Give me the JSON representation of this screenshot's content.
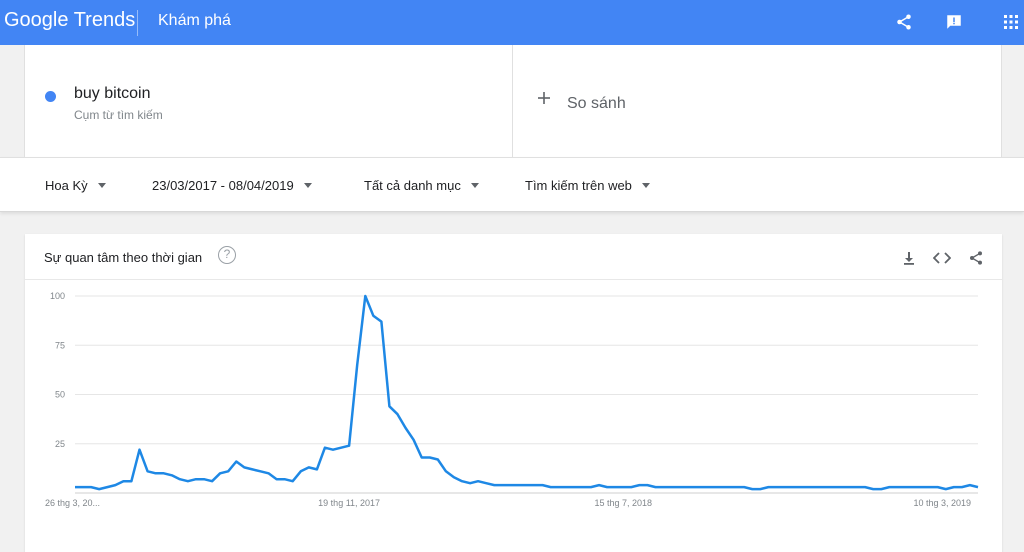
{
  "header": {
    "logo_google": "Google",
    "logo_trends": "Trends",
    "page_title": "Khám phá",
    "icons": [
      "share-icon",
      "feedback-icon",
      "apps-grid-icon"
    ]
  },
  "search": {
    "term": {
      "name": "buy bitcoin",
      "type": "Cụm từ tìm kiếm",
      "color": "#4285f4"
    },
    "compare_label": "So sánh"
  },
  "filters": {
    "region": "Hoa Kỳ",
    "date_range": "23/03/2017 - 08/04/2019",
    "category": "Tất cả danh mục",
    "search_type": "Tìm kiếm trên web"
  },
  "card": {
    "title": "Sự quan tâm theo thời gian",
    "help": "?",
    "icons": [
      "download-icon",
      "embed-icon",
      "share-icon"
    ]
  },
  "chart_data": {
    "type": "line",
    "ylim": [
      0,
      100
    ],
    "yticks": [
      25,
      50,
      75,
      100
    ],
    "ytick_labels": [
      "25",
      "50",
      "75",
      "100"
    ],
    "grid": true,
    "x_tick_labels": [
      "26 thg 3, 20...",
      "19 thg 11, 2017",
      "15 thg 7, 2018",
      "10 thg 3, 2019"
    ],
    "x_tick_week_index": [
      0,
      34,
      68,
      101
    ],
    "series": [
      {
        "color": "#1e88e5",
        "values": [
          3,
          3,
          3,
          2,
          3,
          4,
          6,
          6,
          22,
          11,
          10,
          10,
          9,
          7,
          6,
          7,
          7,
          6,
          10,
          11,
          16,
          13,
          12,
          11,
          10,
          7,
          7,
          6,
          11,
          13,
          12,
          23,
          22,
          23,
          24,
          65,
          100,
          90,
          87,
          44,
          40,
          33,
          27,
          18,
          18,
          17,
          11,
          8,
          6,
          5,
          6,
          5,
          4,
          4,
          4,
          4,
          4,
          4,
          4,
          3,
          3,
          3,
          3,
          3,
          3,
          4,
          3,
          3,
          3,
          3,
          4,
          4,
          3,
          3,
          3,
          3,
          3,
          3,
          3,
          3,
          3,
          3,
          3,
          3,
          2,
          2,
          3,
          3,
          3,
          3,
          3,
          3,
          3,
          3,
          3,
          3,
          3,
          3,
          3,
          2,
          2,
          3,
          3,
          3,
          3,
          3,
          3,
          3,
          2,
          3,
          3,
          4,
          3
        ]
      }
    ]
  }
}
